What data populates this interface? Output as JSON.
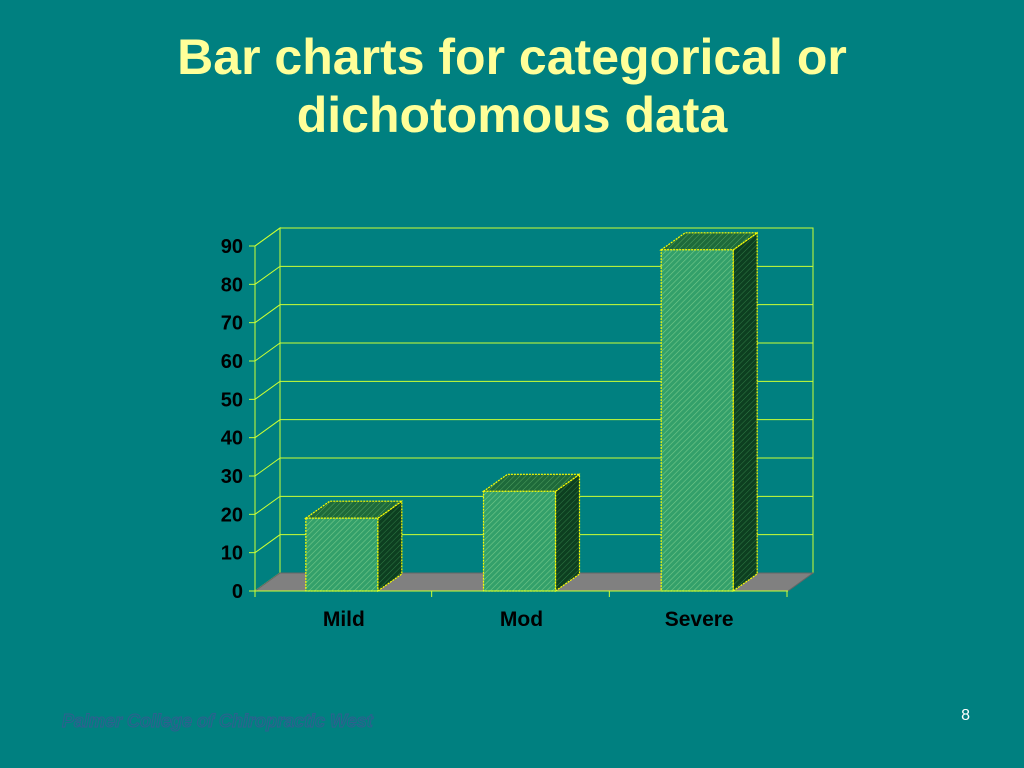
{
  "slide": {
    "title_line1": "Bar charts for categorical or",
    "title_line2": "dichotomous data",
    "footer": "Palmer College of Chiropractic West",
    "page_number": "8"
  },
  "colors": {
    "background": "#008080",
    "title": "#FFFF99",
    "gridline": "#CCFF33",
    "bar_face": "#33A06A",
    "bar_side": "#0D3F20",
    "bar_top": "#1E6A3A",
    "bar_border": "#FFFF00",
    "floor": "#808080"
  },
  "chart_data": {
    "type": "bar",
    "style": "3d",
    "categories": [
      "Mild",
      "Mod",
      "Severe"
    ],
    "values": [
      19,
      26,
      89
    ],
    "ylim": [
      0,
      90
    ],
    "yticks": [
      "0",
      "10",
      "20",
      "30",
      "40",
      "50",
      "60",
      "70",
      "80",
      "90"
    ],
    "title": "",
    "xlabel": "",
    "ylabel": "",
    "grid": true,
    "legend": "none"
  }
}
